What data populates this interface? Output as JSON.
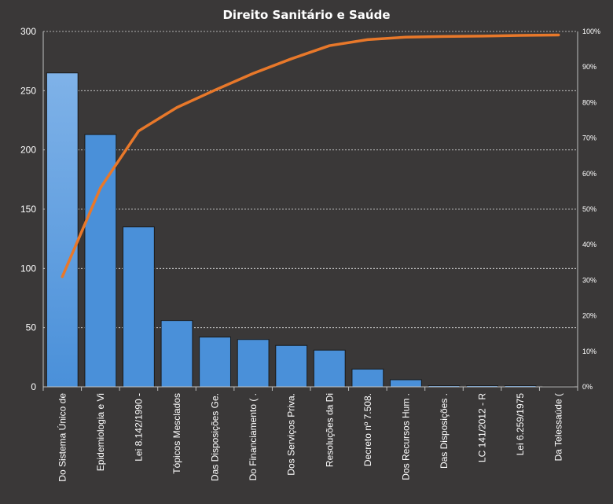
{
  "chart_data": {
    "type": "bar",
    "title": "Direito  Sanitário  e Saúde",
    "categories": [
      "Do Sistema Único de",
      "Epidemiologia e Vi",
      "Lei 8.142/1990 -",
      "Tópicos Mesclados",
      "Das Disposições Ge.",
      "Do Financiamento ( .",
      "Dos Serviços Priva.",
      "Resoluções da Di",
      "Decreto nº 7.508.",
      "Dos Recursos Hum .",
      "Das Disposições .",
      "LC 141/2012 - R",
      "Lei 6.259/1975",
      "Da Telessaúde ("
    ],
    "series": [
      {
        "type": "bar",
        "color": "#4a90d9",
        "values": [
          265,
          213,
          135,
          56,
          42,
          40,
          35,
          31,
          15,
          6,
          1,
          1,
          1,
          0.5
        ]
      },
      {
        "type": "line",
        "axis": "secondary",
        "color": "#e8782a",
        "values": [
          31.0,
          56.0,
          72.0,
          78.6,
          83.5,
          88.2,
          92.3,
          96.0,
          97.7,
          98.4,
          98.6,
          98.7,
          98.9,
          99.0
        ]
      }
    ],
    "yticks": [
      "0",
      "50",
      "100",
      "150",
      "200",
      "250",
      "300"
    ],
    "ylim": [
      0,
      300
    ],
    "y2ticks": [
      "0%",
      "10%",
      "20%",
      "30%",
      "40%",
      "50%",
      "60%",
      "70%",
      "80%",
      "90%",
      "100%"
    ],
    "y2lim": [
      0,
      100
    ],
    "grid": true,
    "legend": "none"
  }
}
